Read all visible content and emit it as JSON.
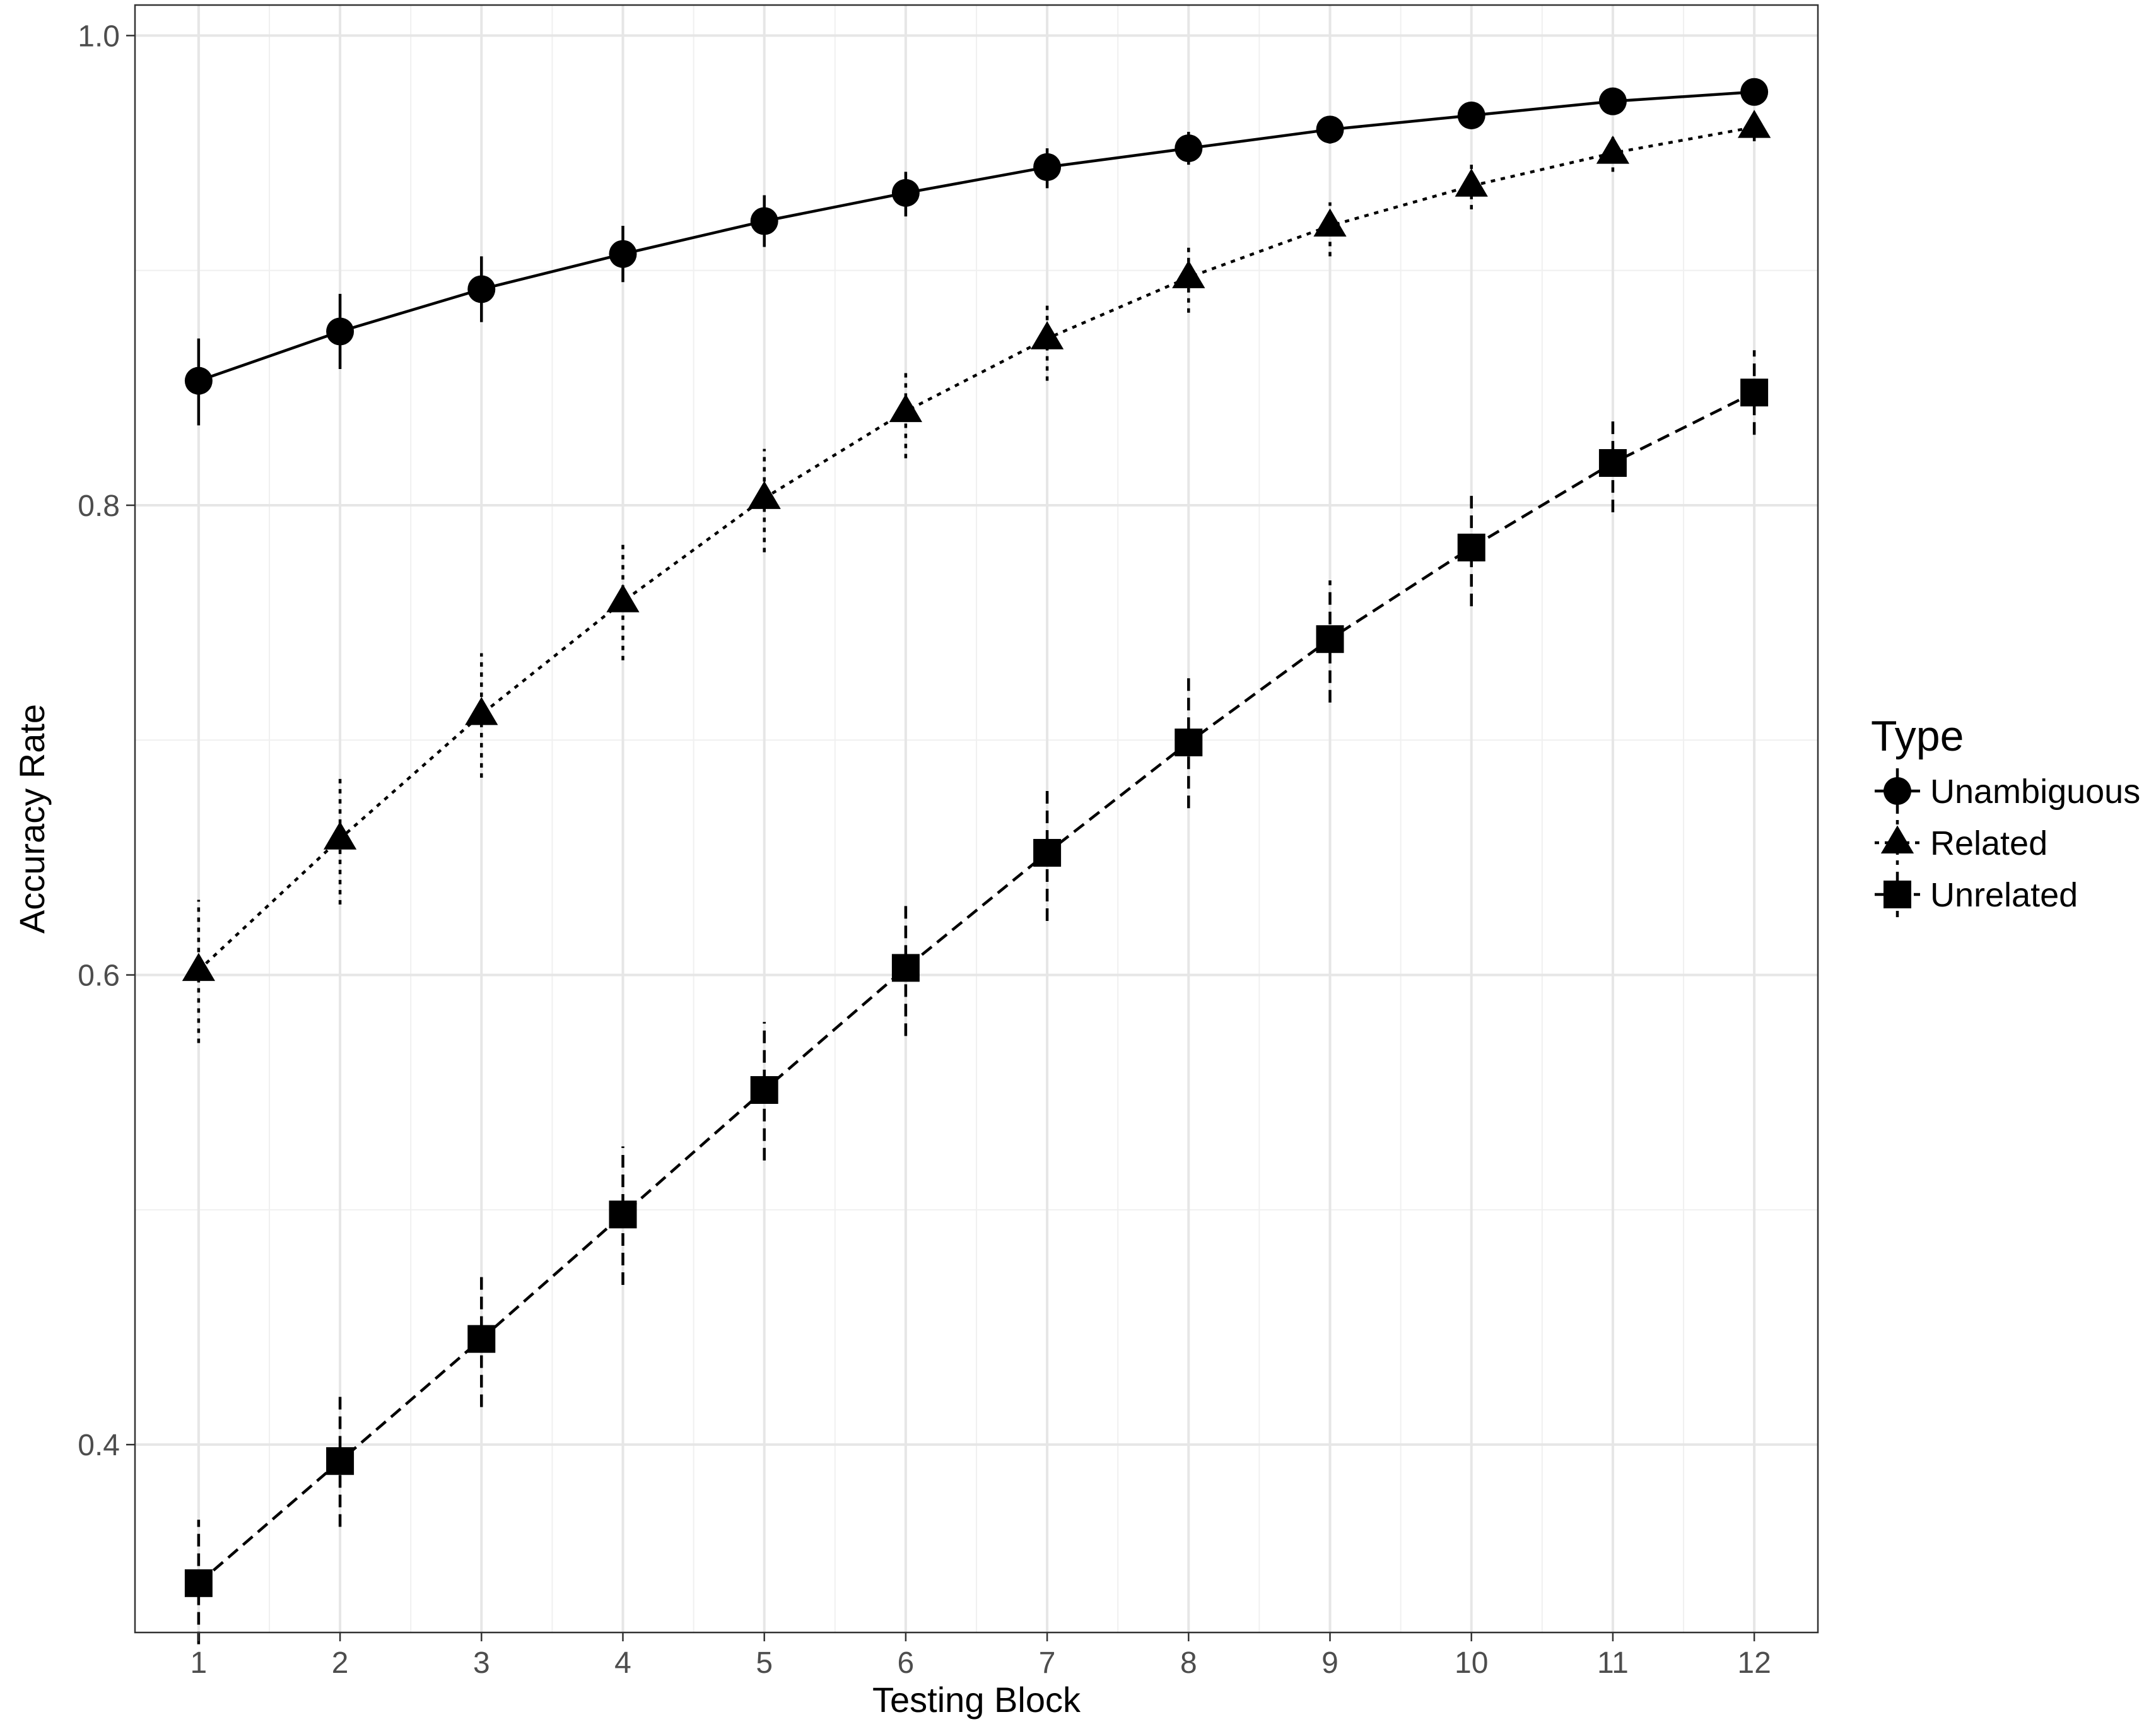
{
  "chart_data": {
    "type": "line",
    "xlabel": "Testing Block",
    "ylabel": "Accuracy Rate",
    "x": [
      1,
      2,
      3,
      4,
      5,
      6,
      7,
      8,
      9,
      10,
      11,
      12
    ],
    "xlim": [
      0.55,
      12.45
    ],
    "ylim": [
      0.32,
      1.013
    ],
    "y_ticks": [
      0.4,
      0.6,
      0.8,
      1.0
    ],
    "y_tick_labels": [
      "0.4",
      "0.6",
      "0.8",
      "1.0"
    ],
    "x_tick_labels": [
      "1",
      "2",
      "3",
      "4",
      "5",
      "6",
      "7",
      "8",
      "9",
      "10",
      "11",
      "12"
    ],
    "grid": true,
    "legend": {
      "title": "Type",
      "placement": "right"
    },
    "series": [
      {
        "name": "Unambiguous",
        "marker": "circle",
        "line_style": "solid",
        "values": [
          0.853,
          0.874,
          0.892,
          0.907,
          0.921,
          0.933,
          0.944,
          0.952,
          0.96,
          0.966,
          0.972,
          0.976
        ],
        "error_low": [
          0.834,
          0.858,
          0.878,
          0.895,
          0.91,
          0.923,
          0.935,
          0.945,
          0.954,
          0.961,
          0.968,
          0.973
        ],
        "error_high": [
          0.871,
          0.89,
          0.906,
          0.919,
          0.932,
          0.942,
          0.952,
          0.959,
          0.965,
          0.97,
          0.975,
          0.979
        ]
      },
      {
        "name": "Related",
        "marker": "triangle",
        "line_style": "dotted",
        "values": [
          0.602,
          0.658,
          0.711,
          0.759,
          0.803,
          0.84,
          0.871,
          0.897,
          0.919,
          0.936,
          0.95,
          0.961
        ],
        "error_low": [
          0.571,
          0.63,
          0.684,
          0.734,
          0.78,
          0.82,
          0.853,
          0.882,
          0.906,
          0.926,
          0.942,
          0.955
        ],
        "error_high": [
          0.632,
          0.685,
          0.737,
          0.784,
          0.824,
          0.858,
          0.886,
          0.91,
          0.929,
          0.945,
          0.957,
          0.966
        ]
      },
      {
        "name": "Unrelated",
        "marker": "square",
        "line_style": "dashed",
        "values": [
          0.341,
          0.393,
          0.445,
          0.498,
          0.551,
          0.603,
          0.652,
          0.699,
          0.743,
          0.782,
          0.818,
          0.848
        ],
        "error_low": [
          0.315,
          0.365,
          0.416,
          0.468,
          0.521,
          0.574,
          0.623,
          0.671,
          0.716,
          0.757,
          0.797,
          0.83
        ],
        "error_high": [
          0.368,
          0.421,
          0.474,
          0.527,
          0.58,
          0.632,
          0.68,
          0.727,
          0.768,
          0.806,
          0.838,
          0.866
        ]
      }
    ]
  }
}
